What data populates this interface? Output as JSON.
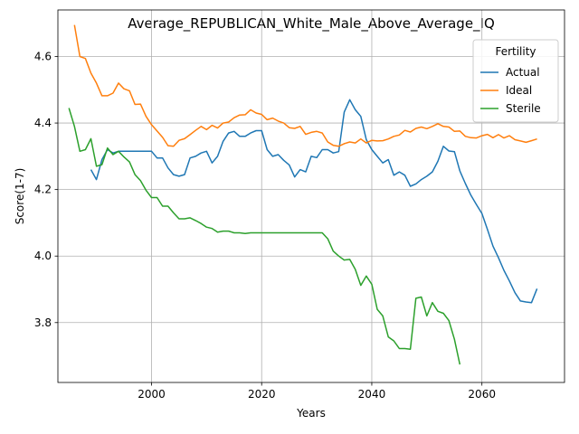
{
  "chart_data": {
    "type": "line",
    "title": "Average_REPUBLICAN_White_Male_Above_Average_IQ",
    "xlabel": "Years",
    "ylabel": "Score(1-7)",
    "xlim": [
      1983,
      2075
    ],
    "ylim": [
      3.62,
      4.74
    ],
    "xticks": [
      2000,
      2020,
      2040,
      2060
    ],
    "yticks": [
      3.8,
      4.0,
      4.2,
      4.4,
      4.6
    ],
    "grid": true,
    "legend": {
      "title": "Fertility",
      "position": "top-right"
    },
    "series": [
      {
        "name": "Actual",
        "color": "#1f77b4",
        "points": [
          [
            1989,
            4.26
          ],
          [
            1990,
            4.23
          ],
          [
            1991,
            4.29
          ],
          [
            1992,
            4.32
          ],
          [
            1993,
            4.31
          ],
          [
            1994,
            4.315
          ],
          [
            1995,
            4.315
          ],
          [
            1996,
            4.315
          ],
          [
            1997,
            4.315
          ],
          [
            1998,
            4.315
          ],
          [
            1999,
            4.315
          ],
          [
            2000,
            4.315
          ],
          [
            2001,
            4.295
          ],
          [
            2002,
            4.295
          ],
          [
            2003,
            4.265
          ],
          [
            2004,
            4.245
          ],
          [
            2005,
            4.24
          ],
          [
            2006,
            4.245
          ],
          [
            2007,
            4.295
          ],
          [
            2008,
            4.3
          ],
          [
            2009,
            4.31
          ],
          [
            2010,
            4.315
          ],
          [
            2011,
            4.28
          ],
          [
            2012,
            4.3
          ],
          [
            2013,
            4.345
          ],
          [
            2014,
            4.37
          ],
          [
            2015,
            4.375
          ],
          [
            2016,
            4.36
          ],
          [
            2017,
            4.36
          ],
          [
            2018,
            4.37
          ],
          [
            2019,
            4.377
          ],
          [
            2020,
            4.377
          ],
          [
            2021,
            4.32
          ],
          [
            2022,
            4.3
          ],
          [
            2023,
            4.305
          ],
          [
            2024,
            4.288
          ],
          [
            2025,
            4.274
          ],
          [
            2026,
            4.238
          ],
          [
            2027,
            4.26
          ],
          [
            2028,
            4.253
          ],
          [
            2029,
            4.3
          ],
          [
            2030,
            4.296
          ],
          [
            2031,
            4.32
          ],
          [
            2032,
            4.32
          ],
          [
            2033,
            4.31
          ],
          [
            2034,
            4.314
          ],
          [
            2035,
            4.433
          ],
          [
            2036,
            4.47
          ],
          [
            2037,
            4.44
          ],
          [
            2038,
            4.42
          ],
          [
            2039,
            4.35
          ],
          [
            2040,
            4.32
          ],
          [
            2041,
            4.3
          ],
          [
            2042,
            4.28
          ],
          [
            2043,
            4.29
          ],
          [
            2044,
            4.243
          ],
          [
            2045,
            4.253
          ],
          [
            2046,
            4.243
          ],
          [
            2047,
            4.21
          ],
          [
            2048,
            4.217
          ],
          [
            2049,
            4.23
          ],
          [
            2050,
            4.24
          ],
          [
            2051,
            4.253
          ],
          [
            2052,
            4.285
          ],
          [
            2053,
            4.33
          ],
          [
            2054,
            4.316
          ],
          [
            2055,
            4.314
          ],
          [
            2056,
            4.256
          ],
          [
            2057,
            4.218
          ],
          [
            2058,
            4.183
          ],
          [
            2059,
            4.155
          ],
          [
            2060,
            4.128
          ],
          [
            2061,
            4.08
          ],
          [
            2062,
            4.03
          ],
          [
            2063,
            3.995
          ],
          [
            2064,
            3.957
          ],
          [
            2065,
            3.925
          ],
          [
            2066,
            3.89
          ],
          [
            2067,
            3.865
          ],
          [
            2068,
            3.862
          ],
          [
            2069,
            3.86
          ],
          [
            2070,
            3.902
          ]
        ]
      },
      {
        "name": "Ideal",
        "color": "#ff7f0e",
        "points": [
          [
            1986,
            4.695
          ],
          [
            1987,
            4.6
          ],
          [
            1988,
            4.594
          ],
          [
            1989,
            4.55
          ],
          [
            1990,
            4.52
          ],
          [
            1991,
            4.482
          ],
          [
            1992,
            4.482
          ],
          [
            1993,
            4.49
          ],
          [
            1994,
            4.52
          ],
          [
            1995,
            4.503
          ],
          [
            1996,
            4.497
          ],
          [
            1997,
            4.456
          ],
          [
            1998,
            4.457
          ],
          [
            1999,
            4.42
          ],
          [
            2000,
            4.395
          ],
          [
            2001,
            4.376
          ],
          [
            2002,
            4.357
          ],
          [
            2003,
            4.332
          ],
          [
            2004,
            4.33
          ],
          [
            2005,
            4.348
          ],
          [
            2006,
            4.353
          ],
          [
            2007,
            4.365
          ],
          [
            2008,
            4.378
          ],
          [
            2009,
            4.39
          ],
          [
            2010,
            4.38
          ],
          [
            2011,
            4.393
          ],
          [
            2012,
            4.385
          ],
          [
            2013,
            4.4
          ],
          [
            2014,
            4.403
          ],
          [
            2015,
            4.416
          ],
          [
            2016,
            4.424
          ],
          [
            2017,
            4.425
          ],
          [
            2018,
            4.44
          ],
          [
            2019,
            4.43
          ],
          [
            2020,
            4.426
          ],
          [
            2021,
            4.41
          ],
          [
            2022,
            4.415
          ],
          [
            2023,
            4.406
          ],
          [
            2024,
            4.4
          ],
          [
            2025,
            4.386
          ],
          [
            2026,
            4.384
          ],
          [
            2027,
            4.39
          ],
          [
            2028,
            4.366
          ],
          [
            2029,
            4.372
          ],
          [
            2030,
            4.375
          ],
          [
            2031,
            4.37
          ],
          [
            2032,
            4.343
          ],
          [
            2033,
            4.333
          ],
          [
            2034,
            4.33
          ],
          [
            2035,
            4.338
          ],
          [
            2036,
            4.343
          ],
          [
            2037,
            4.34
          ],
          [
            2038,
            4.352
          ],
          [
            2039,
            4.34
          ],
          [
            2040,
            4.348
          ],
          [
            2041,
            4.346
          ],
          [
            2042,
            4.347
          ],
          [
            2043,
            4.352
          ],
          [
            2044,
            4.36
          ],
          [
            2045,
            4.364
          ],
          [
            2046,
            4.378
          ],
          [
            2047,
            4.373
          ],
          [
            2048,
            4.384
          ],
          [
            2049,
            4.388
          ],
          [
            2050,
            4.383
          ],
          [
            2051,
            4.39
          ],
          [
            2052,
            4.398
          ],
          [
            2053,
            4.39
          ],
          [
            2054,
            4.388
          ],
          [
            2055,
            4.375
          ],
          [
            2056,
            4.376
          ],
          [
            2057,
            4.36
          ],
          [
            2058,
            4.356
          ],
          [
            2059,
            4.355
          ],
          [
            2060,
            4.362
          ],
          [
            2061,
            4.366
          ],
          [
            2062,
            4.356
          ],
          [
            2063,
            4.365
          ],
          [
            2064,
            4.355
          ],
          [
            2065,
            4.362
          ],
          [
            2066,
            4.35
          ],
          [
            2067,
            4.346
          ],
          [
            2068,
            4.342
          ],
          [
            2069,
            4.347
          ],
          [
            2070,
            4.352
          ]
        ]
      },
      {
        "name": "Sterile",
        "color": "#2ca02c",
        "points": [
          [
            1985,
            4.445
          ],
          [
            1986,
            4.39
          ],
          [
            1987,
            4.315
          ],
          [
            1988,
            4.32
          ],
          [
            1989,
            4.353
          ],
          [
            1990,
            4.27
          ],
          [
            1991,
            4.275
          ],
          [
            1992,
            4.325
          ],
          [
            1993,
            4.305
          ],
          [
            1994,
            4.315
          ],
          [
            1995,
            4.298
          ],
          [
            1996,
            4.283
          ],
          [
            1997,
            4.245
          ],
          [
            1998,
            4.227
          ],
          [
            1999,
            4.198
          ],
          [
            2000,
            4.176
          ],
          [
            2001,
            4.176
          ],
          [
            2002,
            4.15
          ],
          [
            2003,
            4.15
          ],
          [
            2004,
            4.13
          ],
          [
            2005,
            4.112
          ],
          [
            2006,
            4.112
          ],
          [
            2007,
            4.115
          ],
          [
            2008,
            4.107
          ],
          [
            2009,
            4.098
          ],
          [
            2010,
            4.087
          ],
          [
            2011,
            4.083
          ],
          [
            2012,
            4.072
          ],
          [
            2013,
            4.075
          ],
          [
            2014,
            4.075
          ],
          [
            2015,
            4.07
          ],
          [
            2016,
            4.07
          ],
          [
            2017,
            4.068
          ],
          [
            2018,
            4.07
          ],
          [
            2019,
            4.07
          ],
          [
            2020,
            4.07
          ],
          [
            2021,
            4.07
          ],
          [
            2022,
            4.07
          ],
          [
            2023,
            4.07
          ],
          [
            2024,
            4.07
          ],
          [
            2025,
            4.07
          ],
          [
            2026,
            4.07
          ],
          [
            2027,
            4.07
          ],
          [
            2028,
            4.07
          ],
          [
            2029,
            4.07
          ],
          [
            2030,
            4.07
          ],
          [
            2031,
            4.07
          ],
          [
            2032,
            4.052
          ],
          [
            2033,
            4.015
          ],
          [
            2034,
            4.0
          ],
          [
            2035,
            3.988
          ],
          [
            2036,
            3.99
          ],
          [
            2037,
            3.96
          ],
          [
            2038,
            3.912
          ],
          [
            2039,
            3.94
          ],
          [
            2040,
            3.915
          ],
          [
            2041,
            3.84
          ],
          [
            2042,
            3.82
          ],
          [
            2043,
            3.757
          ],
          [
            2044,
            3.745
          ],
          [
            2045,
            3.722
          ],
          [
            2046,
            3.722
          ],
          [
            2047,
            3.72
          ],
          [
            2048,
            3.873
          ],
          [
            2049,
            3.877
          ],
          [
            2050,
            3.82
          ],
          [
            2051,
            3.86
          ],
          [
            2052,
            3.834
          ],
          [
            2053,
            3.828
          ],
          [
            2054,
            3.806
          ],
          [
            2055,
            3.75
          ],
          [
            2056,
            3.674
          ]
        ]
      }
    ]
  }
}
